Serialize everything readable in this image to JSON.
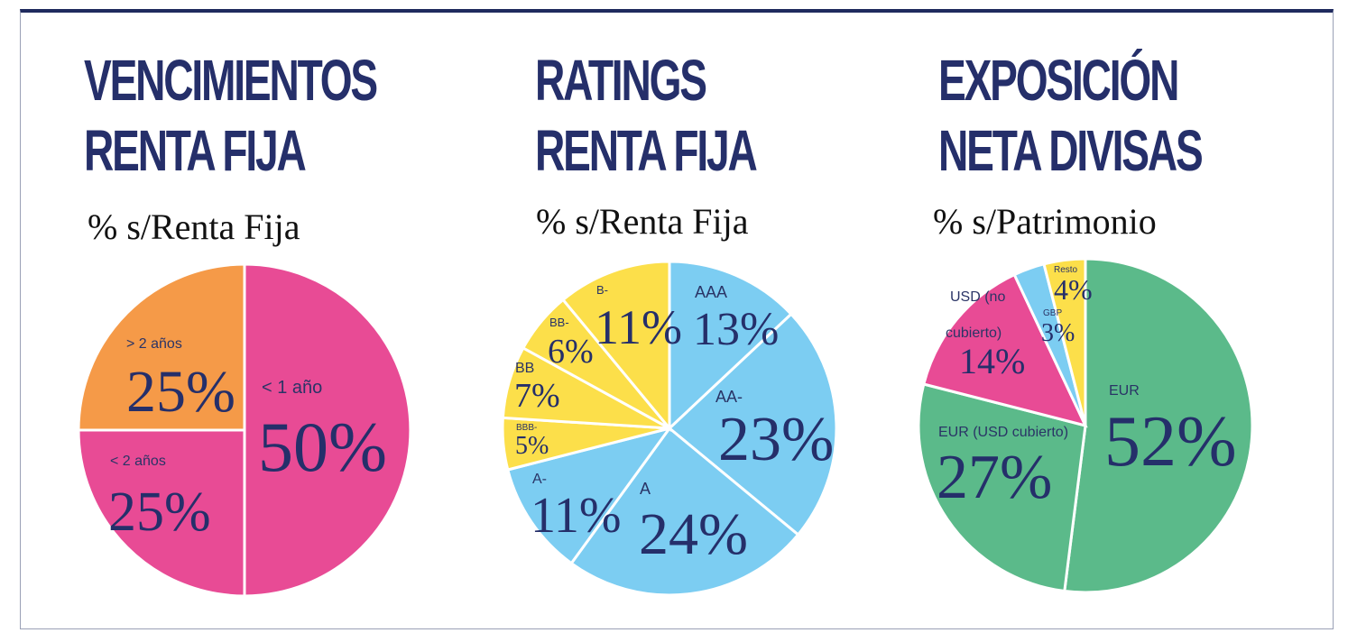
{
  "chart_data": [
    {
      "type": "pie",
      "title": [
        "VENCIMIENTOS",
        "RENTA FIJA"
      ],
      "subtitle": "% s/Renta Fija",
      "slices": [
        {
          "label": "< 1 año",
          "value": 50,
          "display": "50%",
          "color": "#e84b95"
        },
        {
          "label": "< 2 años",
          "value": 25,
          "display": "25%",
          "color": "#e84b95"
        },
        {
          "label": "> 2 años",
          "value": 25,
          "display": "25%",
          "color": "#f59a48"
        }
      ]
    },
    {
      "type": "pie",
      "title": [
        "RATINGS",
        "RENTA FIJA"
      ],
      "subtitle": "% s/Renta Fija",
      "slices": [
        {
          "label": "AAA",
          "value": 13,
          "display": "13%",
          "color": "#7ccdf2"
        },
        {
          "label": "AA-",
          "value": 23,
          "display": "23%",
          "color": "#7ccdf2"
        },
        {
          "label": "A",
          "value": 24,
          "display": "24%",
          "color": "#7ccdf2"
        },
        {
          "label": "A-",
          "value": 11,
          "display": "11%",
          "color": "#7ccdf2"
        },
        {
          "label": "BBB-",
          "value": 5,
          "display": "5%",
          "color": "#fcdf4a"
        },
        {
          "label": "BB",
          "value": 7,
          "display": "7%",
          "color": "#fcdf4a"
        },
        {
          "label": "BB-",
          "value": 6,
          "display": "6%",
          "color": "#fcdf4a"
        },
        {
          "label": "B-",
          "value": 11,
          "display": "11%",
          "color": "#fcdf4a"
        }
      ]
    },
    {
      "type": "pie",
      "title": [
        "EXPOSICIÓN",
        "NETA DIVISAS"
      ],
      "subtitle": "% s/Patrimonio",
      "slices": [
        {
          "label": "EUR",
          "value": 52,
          "display": "52%",
          "color": "#5bba8a"
        },
        {
          "label": "EUR (USD cubierto)",
          "value": 27,
          "display": "27%",
          "color": "#5bba8a"
        },
        {
          "label": "USD (no cubierto)",
          "value": 14,
          "display": "14%",
          "color": "#e84b95"
        },
        {
          "label": "GBP",
          "value": 3,
          "display": "3%",
          "color": "#7ccdf2"
        },
        {
          "label": "Resto",
          "value": 4,
          "display": "4%",
          "color": "#fcdf4a"
        }
      ]
    }
  ]
}
